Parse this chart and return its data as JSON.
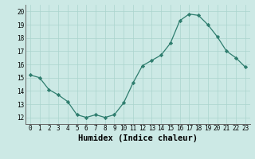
{
  "x": [
    0,
    1,
    2,
    3,
    4,
    5,
    6,
    7,
    8,
    9,
    10,
    11,
    12,
    13,
    14,
    15,
    16,
    17,
    18,
    19,
    20,
    21,
    22,
    23
  ],
  "y": [
    15.2,
    15.0,
    14.1,
    13.7,
    13.2,
    12.2,
    12.0,
    12.2,
    12.0,
    12.2,
    13.1,
    14.6,
    15.9,
    16.3,
    16.7,
    17.6,
    19.3,
    19.8,
    19.7,
    19.0,
    18.1,
    17.0,
    16.5,
    15.8
  ],
  "line_color": "#2e7d6e",
  "marker": "D",
  "marker_size": 2.2,
  "bg_color": "#cce9e5",
  "grid_color": "#aad4ce",
  "xlabel": "Humidex (Indice chaleur)",
  "xlim": [
    -0.5,
    23.5
  ],
  "ylim": [
    11.5,
    20.5
  ],
  "yticks": [
    12,
    13,
    14,
    15,
    16,
    17,
    18,
    19,
    20
  ],
  "xticks": [
    0,
    1,
    2,
    3,
    4,
    5,
    6,
    7,
    8,
    9,
    10,
    11,
    12,
    13,
    14,
    15,
    16,
    17,
    18,
    19,
    20,
    21,
    22,
    23
  ],
  "tick_fontsize": 5.5,
  "xlabel_fontsize": 7.5
}
